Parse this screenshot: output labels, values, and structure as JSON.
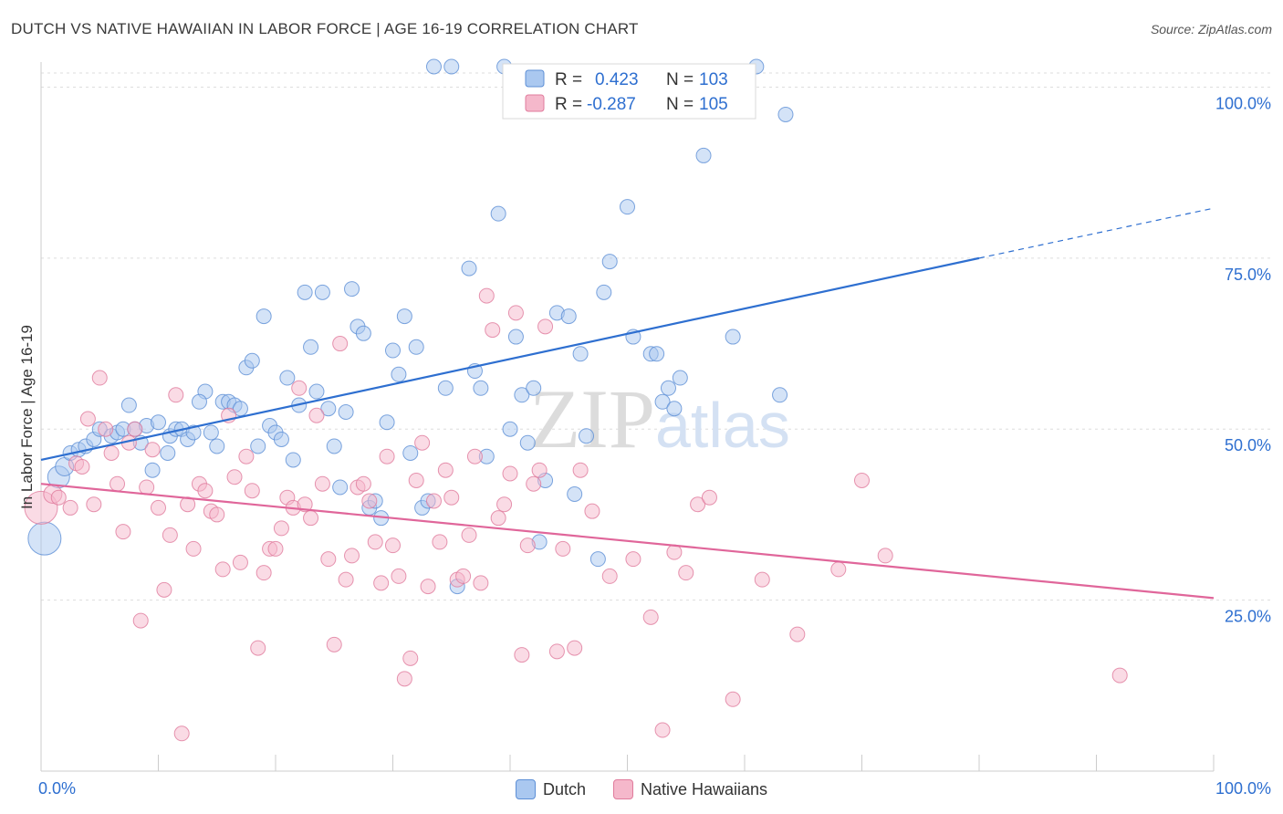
{
  "header": {
    "title": "DUTCH VS NATIVE HAWAIIAN IN LABOR FORCE | AGE 16-19 CORRELATION CHART",
    "source": "Source: ZipAtlas.com"
  },
  "watermark": {
    "zip": "ZIP",
    "atlas": "atlas"
  },
  "colors": {
    "dutch_fill": "#aac8f0",
    "dutch_stroke": "#5d8fd6",
    "dutch_line": "#2e6fd0",
    "hawaiian_fill": "#f5b8cb",
    "hawaiian_stroke": "#e07b9c",
    "hawaiian_line": "#e0669a",
    "value_text": "#2e6fd0",
    "grid": "#dddddd"
  },
  "legend": {
    "rows": [
      {
        "r_label": "R =",
        "r_value": "0.423",
        "n_label": "N =",
        "n_value": "103"
      },
      {
        "r_label": "R =",
        "r_value": "-0.287",
        "n_label": "N =",
        "n_value": "105"
      }
    ]
  },
  "chart_data": {
    "type": "scatter",
    "title": "DUTCH VS NATIVE HAWAIIAN IN LABOR FORCE | AGE 16-19 CORRELATION CHART",
    "xlabel": "",
    "ylabel": "In Labor Force | Age 16-19",
    "xlim": [
      0,
      100
    ],
    "ylim": [
      0,
      103
    ],
    "x_tick_labels": [
      "0.0%",
      "100.0%"
    ],
    "y_ticks": [
      25,
      50,
      75,
      100
    ],
    "y_tick_labels": [
      "25.0%",
      "50.0%",
      "75.0%",
      "100.0%"
    ],
    "grid": true,
    "legend_position": "top-center",
    "series": [
      {
        "name": "Dutch",
        "R": 0.423,
        "N": 103,
        "trend": {
          "x0": 0,
          "y0": 45.5,
          "x1": 80,
          "y1": 75,
          "dashed_to_x": 100,
          "dashed_to_y": 82.3
        },
        "points": [
          [
            0.3,
            34,
            18
          ],
          [
            1.5,
            43,
            12
          ],
          [
            2,
            44.5,
            10
          ],
          [
            2.5,
            46.5,
            8
          ],
          [
            3.2,
            47,
            8
          ],
          [
            3.8,
            47.5,
            8
          ],
          [
            4.5,
            48.5,
            8
          ],
          [
            5,
            50,
            8
          ],
          [
            6,
            49,
            8
          ],
          [
            6.5,
            49.5,
            8
          ],
          [
            7,
            50,
            8
          ],
          [
            8,
            50,
            8
          ],
          [
            8.5,
            48,
            8
          ],
          [
            9,
            50.5,
            8
          ],
          [
            10,
            51,
            8
          ],
          [
            10.8,
            46.5,
            8
          ],
          [
            7.5,
            53.5,
            8
          ],
          [
            9.5,
            44,
            8
          ],
          [
            11,
            49,
            8
          ],
          [
            11.5,
            50,
            8
          ],
          [
            12,
            50,
            8
          ],
          [
            12.5,
            48.5,
            8
          ],
          [
            13,
            49.5,
            8
          ],
          [
            14,
            55.5,
            8
          ],
          [
            13.5,
            54,
            8
          ],
          [
            14.5,
            49.5,
            8
          ],
          [
            15,
            47.5,
            8
          ],
          [
            15.5,
            54,
            8
          ],
          [
            16,
            54,
            8
          ],
          [
            16.5,
            53.5,
            8
          ],
          [
            17,
            53,
            8
          ],
          [
            17.5,
            59,
            8
          ],
          [
            18,
            60,
            8
          ],
          [
            18.5,
            47.5,
            8
          ],
          [
            19,
            66.5,
            8
          ],
          [
            19.5,
            50.5,
            8
          ],
          [
            20,
            49.5,
            8
          ],
          [
            20.5,
            48.5,
            8
          ],
          [
            21,
            57.5,
            8
          ],
          [
            21.5,
            45.5,
            8
          ],
          [
            22,
            53.5,
            8
          ],
          [
            22.5,
            70,
            8
          ],
          [
            23,
            62,
            8
          ],
          [
            23.5,
            55.5,
            8
          ],
          [
            24,
            70,
            8
          ],
          [
            24.5,
            53,
            8
          ],
          [
            25,
            47.5,
            8
          ],
          [
            25.5,
            41.5,
            8
          ],
          [
            26,
            52.5,
            8
          ],
          [
            26.5,
            70.5,
            8
          ],
          [
            27,
            65,
            8
          ],
          [
            27.5,
            64,
            8
          ],
          [
            28,
            38.5,
            8
          ],
          [
            28.5,
            39.5,
            8
          ],
          [
            29,
            37,
            8
          ],
          [
            29.5,
            51,
            8
          ],
          [
            30,
            61.5,
            8
          ],
          [
            30.5,
            58,
            8
          ],
          [
            31,
            66.5,
            8
          ],
          [
            31.5,
            46.5,
            8
          ],
          [
            32,
            62,
            8
          ],
          [
            32.5,
            38.5,
            8
          ],
          [
            33,
            39.5,
            8
          ],
          [
            33.5,
            103,
            8
          ],
          [
            34.5,
            56,
            8
          ],
          [
            35,
            103,
            8
          ],
          [
            35.5,
            27,
            8
          ],
          [
            36.5,
            73.5,
            8
          ],
          [
            37,
            58.5,
            8
          ],
          [
            37.5,
            56,
            8
          ],
          [
            38,
            46,
            8
          ],
          [
            39,
            81.5,
            8
          ],
          [
            39.5,
            103,
            8
          ],
          [
            40,
            50,
            8
          ],
          [
            40.5,
            63.5,
            8
          ],
          [
            41,
            55,
            8
          ],
          [
            41.5,
            48,
            8
          ],
          [
            42,
            56,
            8
          ],
          [
            42.5,
            33.5,
            8
          ],
          [
            43,
            42.5,
            8
          ],
          [
            44,
            67,
            8
          ],
          [
            45,
            66.5,
            8
          ],
          [
            45.5,
            40.5,
            8
          ],
          [
            46,
            61,
            8
          ],
          [
            46.5,
            49,
            8
          ],
          [
            47.5,
            31,
            8
          ],
          [
            48,
            70,
            8
          ],
          [
            48.5,
            74.5,
            8
          ],
          [
            50,
            82.5,
            8
          ],
          [
            50.5,
            63.5,
            8
          ],
          [
            52,
            61,
            8
          ],
          [
            52.5,
            61,
            8
          ],
          [
            53,
            54,
            8
          ],
          [
            53.5,
            56,
            8
          ],
          [
            54,
            53,
            8
          ],
          [
            54.5,
            57.5,
            8
          ],
          [
            56.5,
            90,
            8
          ],
          [
            59,
            63.5,
            8
          ],
          [
            61,
            103,
            8
          ],
          [
            63,
            55,
            8
          ],
          [
            63.5,
            96,
            8
          ]
        ]
      },
      {
        "name": "Native Hawaiians",
        "R": -0.287,
        "N": 105,
        "trend": {
          "x0": 0,
          "y0": 42,
          "x1": 100,
          "y1": 25.3
        },
        "points": [
          [
            0,
            38.5,
            18
          ],
          [
            1,
            40.5,
            10
          ],
          [
            1.5,
            40,
            8
          ],
          [
            2.5,
            38.5,
            8
          ],
          [
            3,
            45,
            8
          ],
          [
            3.5,
            44.5,
            8
          ],
          [
            4,
            51.5,
            8
          ],
          [
            4.5,
            39,
            8
          ],
          [
            5,
            57.5,
            8
          ],
          [
            5.5,
            50,
            8
          ],
          [
            6,
            46.5,
            8
          ],
          [
            6.5,
            42,
            8
          ],
          [
            7,
            35,
            8
          ],
          [
            7.5,
            48,
            8
          ],
          [
            8,
            50,
            8
          ],
          [
            8.5,
            22,
            8
          ],
          [
            9,
            41.5,
            8
          ],
          [
            9.5,
            47,
            8
          ],
          [
            10,
            38.5,
            8
          ],
          [
            10.5,
            26.5,
            8
          ],
          [
            11,
            34.5,
            8
          ],
          [
            11.5,
            55,
            8
          ],
          [
            12,
            5.5,
            8
          ],
          [
            12.5,
            39,
            8
          ],
          [
            13,
            32.5,
            8
          ],
          [
            13.5,
            42,
            8
          ],
          [
            14,
            41,
            8
          ],
          [
            14.5,
            38,
            8
          ],
          [
            15,
            37.5,
            8
          ],
          [
            15.5,
            29.5,
            8
          ],
          [
            16,
            52,
            8
          ],
          [
            16.5,
            43,
            8
          ],
          [
            17,
            30.5,
            8
          ],
          [
            17.5,
            46,
            8
          ],
          [
            18,
            41,
            8
          ],
          [
            18.5,
            18,
            8
          ],
          [
            19,
            29,
            8
          ],
          [
            19.5,
            32.5,
            8
          ],
          [
            20,
            32.5,
            8
          ],
          [
            20.5,
            35.5,
            8
          ],
          [
            21,
            40,
            8
          ],
          [
            21.5,
            38.5,
            8
          ],
          [
            22,
            56,
            8
          ],
          [
            22.5,
            39,
            8
          ],
          [
            23,
            37,
            8
          ],
          [
            23.5,
            52,
            8
          ],
          [
            24,
            42,
            8
          ],
          [
            24.5,
            31,
            8
          ],
          [
            25,
            18.5,
            8
          ],
          [
            25.5,
            62.5,
            8
          ],
          [
            26,
            28,
            8
          ],
          [
            26.5,
            31.5,
            8
          ],
          [
            27,
            41.5,
            8
          ],
          [
            27.5,
            42,
            8
          ],
          [
            28,
            39.5,
            8
          ],
          [
            28.5,
            33.5,
            8
          ],
          [
            29,
            27.5,
            8
          ],
          [
            29.5,
            46,
            8
          ],
          [
            30,
            33,
            8
          ],
          [
            30.5,
            28.5,
            8
          ],
          [
            31,
            13.5,
            8
          ],
          [
            31.5,
            16.5,
            8
          ],
          [
            32,
            42.5,
            8
          ],
          [
            32.5,
            48,
            8
          ],
          [
            33,
            27,
            8
          ],
          [
            33.5,
            39.5,
            8
          ],
          [
            34,
            33.5,
            8
          ],
          [
            34.5,
            44,
            8
          ],
          [
            35,
            40,
            8
          ],
          [
            35.5,
            28,
            8
          ],
          [
            36,
            28.5,
            8
          ],
          [
            36.5,
            34.5,
            8
          ],
          [
            37,
            46,
            8
          ],
          [
            37.5,
            27.5,
            8
          ],
          [
            38,
            69.5,
            8
          ],
          [
            38.5,
            64.5,
            8
          ],
          [
            39,
            37,
            8
          ],
          [
            39.5,
            39,
            8
          ],
          [
            40,
            43.5,
            8
          ],
          [
            40.5,
            67,
            8
          ],
          [
            41,
            17,
            8
          ],
          [
            41.5,
            33,
            8
          ],
          [
            42,
            42,
            8
          ],
          [
            42.5,
            44,
            8
          ],
          [
            43,
            65,
            8
          ],
          [
            44,
            17.5,
            8
          ],
          [
            44.5,
            32.5,
            8
          ],
          [
            45.5,
            18,
            8
          ],
          [
            46,
            44,
            8
          ],
          [
            47,
            38,
            8
          ],
          [
            48.5,
            28.5,
            8
          ],
          [
            50.5,
            31,
            8
          ],
          [
            52,
            22.5,
            8
          ],
          [
            53,
            6,
            8
          ],
          [
            54,
            32,
            8
          ],
          [
            55,
            29,
            8
          ],
          [
            56,
            39,
            8
          ],
          [
            57,
            40,
            8
          ],
          [
            59,
            10.5,
            8
          ],
          [
            61.5,
            28,
            8
          ],
          [
            64.5,
            20,
            8
          ],
          [
            68,
            29.5,
            8
          ],
          [
            70,
            42.5,
            8
          ],
          [
            72,
            31.5,
            8
          ],
          [
            92,
            14,
            8
          ]
        ]
      }
    ]
  },
  "bottom_legend": [
    {
      "label": "Dutch"
    },
    {
      "label": "Native Hawaiians"
    }
  ]
}
